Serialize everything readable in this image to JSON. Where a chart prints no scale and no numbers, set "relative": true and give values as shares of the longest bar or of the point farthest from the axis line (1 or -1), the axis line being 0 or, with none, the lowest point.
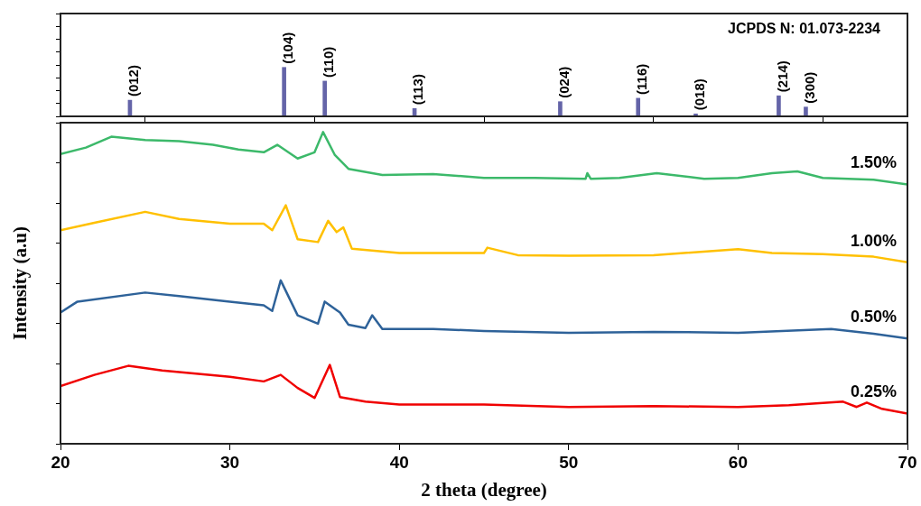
{
  "chart_data": [
    {
      "type": "bar",
      "relative": true,
      "color": "#6464a8",
      "xlim": [
        20,
        70
      ],
      "xticks": [
        20,
        30,
        40,
        50,
        60,
        70
      ],
      "tick_labels": false,
      "x": [
        24.1,
        33.2,
        35.6,
        40.9,
        49.5,
        54.1,
        57.5,
        62.4,
        64.0
      ],
      "values": [
        0.33,
        1,
        0.72,
        0.16,
        0.3,
        0.37,
        0.05,
        0.42,
        0.19
      ],
      "annotations": [
        "JCPDS N: 01.073-2234",
        {
          "text": "(012)",
          "x": 24.1,
          "y": 0.33
        },
        {
          "text": "(104)",
          "x": 33.2,
          "y": 1
        },
        {
          "text": "(110)",
          "x": 35.6,
          "y": 0.72
        },
        {
          "text": "(113)",
          "x": 40.9,
          "y": 0.16
        },
        {
          "text": "(024)",
          "x": 49.5,
          "y": 0.3
        },
        {
          "text": "(116)",
          "x": 54.1,
          "y": 0.37
        },
        {
          "text": "(018)",
          "x": 57.5,
          "y": 0.05
        },
        {
          "text": "(214)",
          "x": 62.4,
          "y": 0.42
        },
        {
          "text": "(300)",
          "x": 64.0,
          "y": 0.19
        }
      ]
    },
    {
      "type": "line",
      "relative": true,
      "xlabel": "2 theta (degree)",
      "ylabel": "Intensity (a.u)",
      "xlim": [
        20,
        70
      ],
      "xticks": [
        20,
        30,
        40,
        50,
        60,
        70
      ],
      "tick_labels": "x",
      "marker": "none",
      "series": [
        {
          "name": "1.50%",
          "color": "#3cb96a",
          "x": [
            20,
            21.5,
            23,
            25,
            27,
            29,
            30.5,
            32,
            32.8,
            34,
            35,
            35.5,
            36.2,
            37,
            39,
            42,
            45,
            48,
            51,
            51.1,
            51.3,
            53,
            55.2,
            58,
            60,
            62,
            63.5,
            65,
            68,
            70
          ],
          "values": [
            0.929,
            0.95,
            0.985,
            0.974,
            0.971,
            0.959,
            0.944,
            0.935,
            0.959,
            0.915,
            0.935,
            1.0,
            0.926,
            0.882,
            0.862,
            0.865,
            0.853,
            0.853,
            0.85,
            0.868,
            0.85,
            0.853,
            0.868,
            0.85,
            0.853,
            0.868,
            0.874,
            0.853,
            0.847,
            0.832
          ]
        },
        {
          "name": "1.00%",
          "color": "#ffc000",
          "x": [
            20,
            22,
            25,
            27,
            30,
            32,
            32.5,
            33.3,
            34,
            35.2,
            35.8,
            36.3,
            36.7,
            37.2,
            40,
            45,
            45.2,
            47,
            50,
            55,
            60,
            62,
            65,
            68,
            70
          ],
          "values": [
            0.685,
            0.709,
            0.744,
            0.721,
            0.706,
            0.706,
            0.685,
            0.765,
            0.656,
            0.647,
            0.715,
            0.679,
            0.694,
            0.626,
            0.612,
            0.612,
            0.629,
            0.605,
            0.603,
            0.605,
            0.624,
            0.612,
            0.608,
            0.6,
            0.582
          ]
        },
        {
          "name": "0.50%",
          "color": "#2e6299",
          "x": [
            20,
            21,
            25,
            27,
            30,
            32,
            32.5,
            33,
            34,
            35.2,
            35.6,
            36.5,
            37,
            38,
            38.4,
            39,
            42,
            45,
            50,
            55,
            60,
            65.5,
            68,
            70
          ],
          "values": [
            0.421,
            0.456,
            0.485,
            0.474,
            0.456,
            0.444,
            0.426,
            0.524,
            0.412,
            0.385,
            0.456,
            0.421,
            0.382,
            0.371,
            0.412,
            0.368,
            0.368,
            0.362,
            0.356,
            0.359,
            0.356,
            0.368,
            0.353,
            0.338
          ]
        },
        {
          "name": "0.25%",
          "color": "#f00000",
          "x": [
            20,
            22,
            24,
            26,
            30,
            32,
            33,
            34,
            35,
            35.9,
            36.5,
            38,
            40,
            45,
            50,
            55,
            60,
            63,
            66.2,
            67,
            67.6,
            68.5,
            70
          ],
          "values": [
            0.185,
            0.221,
            0.25,
            0.235,
            0.215,
            0.2,
            0.221,
            0.179,
            0.147,
            0.253,
            0.15,
            0.135,
            0.126,
            0.126,
            0.118,
            0.121,
            0.118,
            0.124,
            0.135,
            0.118,
            0.132,
            0.112,
            0.097
          ]
        }
      ]
    }
  ]
}
